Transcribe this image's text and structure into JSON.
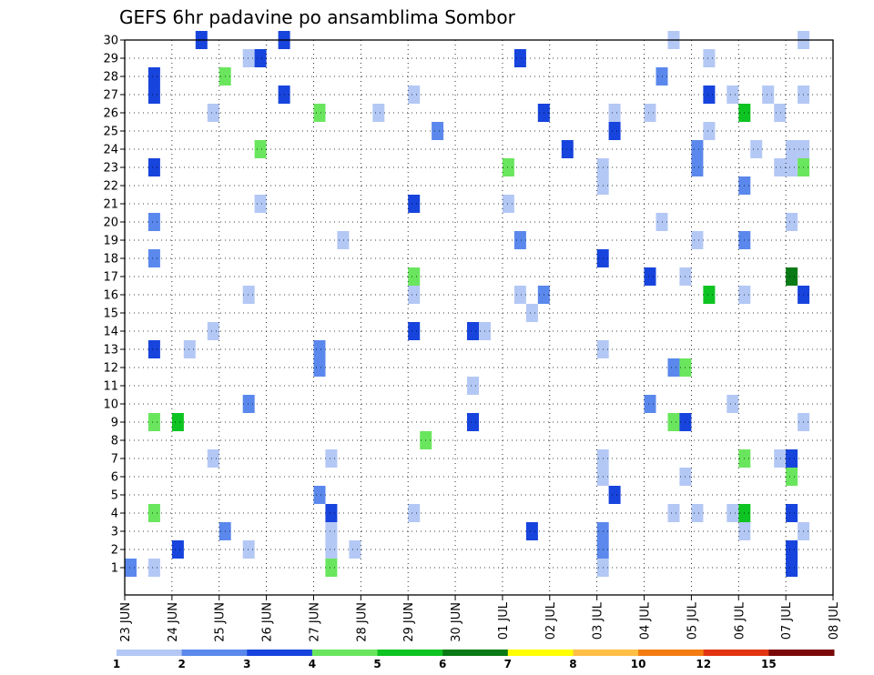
{
  "chart_data": {
    "type": "heatmap",
    "title": "GEFS 6hr padavine po ansamblima Sombor",
    "x_tick_labels": [
      "23 JUN",
      "24 JUN",
      "25 JUN",
      "26 JUN",
      "27 JUN",
      "28 JUN",
      "29 JUN",
      "30 JUN",
      "01 JUL",
      "02 JUL",
      "03 JUL",
      "04 JUL",
      "05 JUL",
      "06 JUL",
      "07 JUL",
      "08 JUL"
    ],
    "x_steps_per_day": 4,
    "y_tick_labels": [
      "1",
      "2",
      "3",
      "4",
      "5",
      "6",
      "7",
      "8",
      "9",
      "10",
      "11",
      "12",
      "13",
      "14",
      "15",
      "16",
      "17",
      "18",
      "19",
      "20",
      "21",
      "22",
      "23",
      "24",
      "25",
      "26",
      "27",
      "28",
      "29",
      "30"
    ],
    "grid": "dotted",
    "colorbar": {
      "levels": [
        1,
        2,
        3,
        4,
        5,
        6,
        7,
        8,
        10,
        12,
        15,
        20
      ],
      "colors": [
        "#b4c8f5",
        "#5a88ec",
        "#1744dd",
        "#6ae65e",
        "#0ec422",
        "#0a7a16",
        "#ffff00",
        "#ffbf45",
        "#f47c10",
        "#e23412",
        "#7a0808"
      ]
    },
    "cells": [
      [
        0,
        1,
        2
      ],
      [
        2,
        1,
        1
      ],
      [
        2,
        4,
        4
      ],
      [
        2,
        9,
        4
      ],
      [
        2,
        13,
        3
      ],
      [
        2,
        18,
        2
      ],
      [
        2,
        20,
        2
      ],
      [
        2,
        23,
        3
      ],
      [
        2,
        27,
        3
      ],
      [
        2,
        28,
        3
      ],
      [
        0,
        2,
        3
      ],
      [
        0,
        9,
        5
      ],
      [
        1,
        13,
        1
      ],
      [
        2,
        30,
        3
      ],
      [
        3,
        7,
        1
      ],
      [
        3,
        14,
        1
      ],
      [
        3,
        26,
        1
      ],
      [
        0,
        3,
        2
      ],
      [
        0,
        28,
        4
      ],
      [
        2,
        10,
        2
      ],
      [
        2,
        29,
        1
      ],
      [
        2,
        16,
        1
      ],
      [
        2,
        2,
        1
      ],
      [
        3,
        21,
        1
      ],
      [
        3,
        24,
        4
      ],
      [
        3,
        29,
        3
      ],
      [
        1,
        27,
        3
      ],
      [
        1,
        30,
        3
      ],
      [
        0,
        5,
        2
      ],
      [
        0,
        12,
        2
      ],
      [
        0,
        26,
        4
      ],
      [
        0,
        13,
        2
      ],
      [
        1,
        1,
        4
      ],
      [
        1,
        2,
        1
      ],
      [
        1,
        3,
        1
      ],
      [
        1,
        4,
        3
      ],
      [
        1,
        7,
        1
      ],
      [
        2,
        19,
        1
      ],
      [
        3,
        2,
        1
      ],
      [
        1,
        26,
        1
      ],
      [
        0,
        17,
        4
      ],
      [
        0,
        14,
        3
      ],
      [
        0,
        4,
        1
      ],
      [
        0,
        16,
        1
      ],
      [
        0,
        27,
        1
      ],
      [
        0,
        21,
        3
      ],
      [
        1,
        8,
        4
      ],
      [
        2,
        25,
        2
      ],
      [
        1,
        11,
        1
      ],
      [
        1,
        14,
        3
      ],
      [
        1,
        9,
        3
      ],
      [
        2,
        14,
        1
      ],
      [
        0,
        23,
        4
      ],
      [
        0,
        21,
        1
      ],
      [
        1,
        16,
        1
      ],
      [
        1,
        29,
        3
      ],
      [
        1,
        19,
        2
      ],
      [
        2,
        3,
        3
      ],
      [
        2,
        15,
        1
      ],
      [
        3,
        16,
        2
      ],
      [
        3,
        26,
        3
      ],
      [
        1,
        24,
        3
      ],
      [
        0,
        1,
        1
      ],
      [
        0,
        2,
        2
      ],
      [
        0,
        3,
        2
      ],
      [
        0,
        6,
        1
      ],
      [
        0,
        7,
        1
      ],
      [
        0,
        13,
        1
      ],
      [
        0,
        18,
        3
      ],
      [
        0,
        22,
        1
      ],
      [
        0,
        23,
        1
      ],
      [
        1,
        5,
        3
      ],
      [
        1,
        25,
        3
      ],
      [
        1,
        26,
        1
      ],
      [
        0,
        10,
        2
      ],
      [
        0,
        17,
        3
      ],
      [
        0,
        26,
        1
      ],
      [
        1,
        28,
        2
      ],
      [
        1,
        20,
        1
      ],
      [
        2,
        4,
        1
      ],
      [
        2,
        9,
        4
      ],
      [
        2,
        12,
        2
      ],
      [
        2,
        30,
        1
      ],
      [
        3,
        9,
        3
      ],
      [
        3,
        12,
        4
      ],
      [
        3,
        17,
        1
      ],
      [
        3,
        6,
        1
      ],
      [
        0,
        23,
        2
      ],
      [
        0,
        24,
        2
      ],
      [
        0,
        19,
        1
      ],
      [
        0,
        4,
        1
      ],
      [
        1,
        16,
        5
      ],
      [
        1,
        29,
        1
      ],
      [
        1,
        27,
        3
      ],
      [
        1,
        25,
        1
      ],
      [
        3,
        10,
        1
      ],
      [
        3,
        4,
        1
      ],
      [
        3,
        27,
        1
      ],
      [
        0,
        4,
        5
      ],
      [
        0,
        7,
        4
      ],
      [
        0,
        16,
        1
      ],
      [
        0,
        19,
        2
      ],
      [
        0,
        22,
        2
      ],
      [
        0,
        3,
        1
      ],
      [
        0,
        26,
        5
      ],
      [
        1,
        24,
        1
      ],
      [
        2,
        27,
        1
      ],
      [
        3,
        7,
        1
      ],
      [
        3,
        23,
        1
      ],
      [
        3,
        26,
        1
      ],
      [
        0,
        1,
        3
      ],
      [
        0,
        2,
        3
      ],
      [
        0,
        4,
        3
      ],
      [
        0,
        6,
        4
      ],
      [
        0,
        7,
        3
      ],
      [
        0,
        17,
        6
      ],
      [
        0,
        20,
        1
      ],
      [
        0,
        23,
        1
      ],
      [
        0,
        24,
        1
      ],
      [
        1,
        9,
        1
      ],
      [
        1,
        3,
        1
      ],
      [
        1,
        16,
        3
      ],
      [
        1,
        23,
        4
      ],
      [
        1,
        24,
        1
      ],
      [
        1,
        27,
        1
      ],
      [
        1,
        30,
        1
      ],
      [
        0,
        25,
        1
      ],
      [
        0,
        29,
        1
      ],
      [
        0,
        9,
        1
      ],
      [
        0,
        10,
        1
      ],
      [
        1,
        1,
        3
      ],
      [
        1,
        5,
        4
      ],
      [
        1,
        15,
        1
      ],
      [
        1,
        22,
        1
      ],
      [
        1,
        27,
        4
      ],
      [
        2,
        23,
        3
      ],
      [
        2,
        4,
        3
      ],
      [
        2,
        21,
        1
      ],
      [
        2,
        25,
        2
      ],
      [
        3,
        3,
        1
      ],
      [
        3,
        6,
        1
      ],
      [
        3,
        16,
        1
      ],
      [
        3,
        22,
        1
      ],
      [
        3,
        25,
        3
      ],
      [
        0,
        3,
        1
      ],
      [
        0,
        7,
        8
      ],
      [
        0,
        13,
        2
      ],
      [
        0,
        16,
        3
      ],
      [
        0,
        23,
        1
      ],
      [
        0,
        24,
        7
      ],
      [
        0,
        25,
        6
      ],
      [
        0,
        28,
        2
      ],
      [
        1,
        1,
        2
      ],
      [
        1,
        4,
        1
      ],
      [
        1,
        5,
        1
      ],
      [
        1,
        6,
        3
      ],
      [
        1,
        7,
        7
      ],
      [
        1,
        8,
        1
      ],
      [
        1,
        10,
        1
      ],
      [
        1,
        12,
        1
      ],
      [
        1,
        13,
        1
      ],
      [
        1,
        14,
        2
      ],
      [
        1,
        15,
        2
      ],
      [
        1,
        16,
        2
      ],
      [
        1,
        17,
        1
      ],
      [
        1,
        18,
        1
      ],
      [
        1,
        20,
        1
      ],
      [
        1,
        23,
        1
      ],
      [
        1,
        25,
        1
      ],
      [
        1,
        29,
        3
      ],
      [
        0,
        2,
        1
      ],
      [
        0,
        3,
        1
      ],
      [
        0,
        7,
        2
      ],
      [
        0,
        10,
        3
      ],
      [
        0,
        13,
        4
      ],
      [
        0,
        14,
        4
      ],
      [
        0,
        23,
        1
      ],
      [
        0,
        24,
        1
      ],
      [
        0,
        28,
        1
      ],
      [
        1,
        17,
        1
      ],
      [
        1,
        22,
        1
      ],
      [
        1,
        25,
        1
      ],
      [
        1,
        29,
        2
      ],
      [
        2,
        12,
        1
      ],
      [
        2,
        13,
        1
      ],
      [
        2,
        24,
        1
      ],
      [
        2,
        27,
        1
      ],
      [
        3,
        9,
        1
      ],
      [
        3,
        10,
        1
      ],
      [
        3,
        23,
        1
      ],
      [
        0,
        1,
        2
      ],
      [
        0,
        2,
        3
      ],
      [
        0,
        3,
        2
      ],
      [
        0,
        5,
        1
      ],
      [
        0,
        6,
        1
      ],
      [
        0,
        10,
        1
      ],
      [
        0,
        13,
        1
      ],
      [
        0,
        14,
        1
      ],
      [
        0,
        15,
        3
      ],
      [
        0,
        16,
        2
      ],
      [
        0,
        17,
        1
      ],
      [
        0,
        19,
        1
      ],
      [
        0,
        20,
        1
      ],
      [
        0,
        23,
        1
      ],
      [
        0,
        24,
        1
      ],
      [
        0,
        26,
        2
      ],
      [
        0,
        27,
        1
      ],
      [
        0,
        28,
        1
      ],
      [
        0,
        30,
        1
      ],
      [
        1,
        17,
        1
      ],
      [
        1,
        19,
        1
      ],
      [
        1,
        20,
        1
      ],
      [
        1,
        21,
        1
      ],
      [
        1,
        23,
        1
      ],
      [
        1,
        24,
        2
      ],
      [
        1,
        28,
        1
      ],
      [
        0,
        1,
        1
      ],
      [
        0,
        2,
        1
      ],
      [
        0,
        5,
        3
      ],
      [
        0,
        7,
        6
      ],
      [
        0,
        12,
        3
      ],
      [
        0,
        13,
        3
      ],
      [
        0,
        15,
        3
      ],
      [
        0,
        17,
        1
      ],
      [
        0,
        24,
        1
      ],
      [
        0,
        27,
        1
      ],
      [
        0,
        28,
        2
      ],
      [
        1,
        11,
        1
      ],
      [
        1,
        15,
        1
      ],
      [
        1,
        19,
        2
      ],
      [
        1,
        23,
        1
      ],
      [
        1,
        25,
        1
      ],
      [
        1,
        26,
        1
      ],
      [
        2,
        1,
        2
      ],
      [
        2,
        2,
        1
      ],
      [
        2,
        3,
        3
      ],
      [
        2,
        4,
        2
      ],
      [
        2,
        5,
        2
      ],
      [
        2,
        7,
        6
      ],
      [
        2,
        13,
        1
      ],
      [
        2,
        17,
        1
      ],
      [
        2,
        23,
        4
      ],
      [
        2,
        28,
        1
      ],
      [
        2,
        30,
        1
      ]
    ]
  }
}
